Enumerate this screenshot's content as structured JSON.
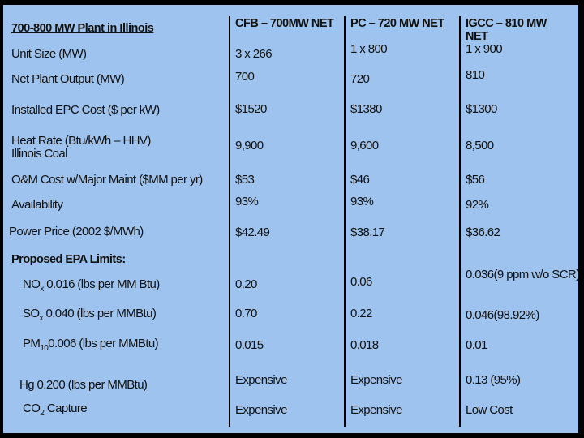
{
  "title": "700-800 MW Plant in Illinois",
  "columns": [
    "CFB – 700MW NET",
    "PC – 720 MW NET",
    "IGCC – 810 MW NET"
  ],
  "rows": [
    {
      "label": "Unit Size (MW)",
      "values": [
        "3 x 266",
        "1 x 800",
        "1 x 900"
      ]
    },
    {
      "label": "Net Plant Output (MW)",
      "values": [
        "700",
        "720",
        "810"
      ]
    },
    {
      "label": "Installed EPC Cost ($ per kW)",
      "values": [
        "$1520",
        "$1380",
        "$1300"
      ]
    },
    {
      "label": "Heat Rate (Btu/kWh – HHV)",
      "label2": "Illinois Coal",
      "values": [
        "9,900",
        "9,600",
        "8,500"
      ]
    },
    {
      "label": "O&M Cost w/Major Maint ($MM per yr)",
      "values": [
        "$53",
        "$46",
        "$56"
      ]
    },
    {
      "label": "Availability",
      "values": [
        "93%",
        "93%",
        "92%"
      ]
    },
    {
      "label": "Power Price (2002 $/MWh)",
      "values": [
        "$42.49",
        "$38.17",
        "$36.62"
      ]
    }
  ],
  "epa_header": "Proposed EPA Limits:",
  "epa_rows": [
    {
      "pre": "NO",
      "sub": "x",
      "post": " 0.016 (lbs per MM Btu)",
      "values": [
        "0.20",
        "0.06",
        "0.036(9 ppm w/o SCR)"
      ]
    },
    {
      "pre": "SO",
      "sub": "x",
      "post": " 0.040 (lbs per MMBtu)",
      "values": [
        "0.70",
        "0.22",
        "0.046(98.92%)"
      ]
    },
    {
      "pre": "PM",
      "sub": "10",
      "post": "0.006 (lbs per MMBtu)",
      "values": [
        "0.015",
        "0.018",
        "0.01"
      ]
    },
    {
      "pre": "Hg 0.200 (lbs per MMBtu)",
      "sub": "",
      "post": "",
      "values": [
        "Expensive",
        "Expensive",
        "0.13 (95%)"
      ]
    },
    {
      "pre": "CO",
      "sub": "2",
      "post": " Capture",
      "values": [
        "Expensive",
        "Expensive",
        "Low Cost"
      ]
    }
  ],
  "colors": {
    "background": "#9dc3ee",
    "frame": "#000000",
    "text": "#111111"
  }
}
